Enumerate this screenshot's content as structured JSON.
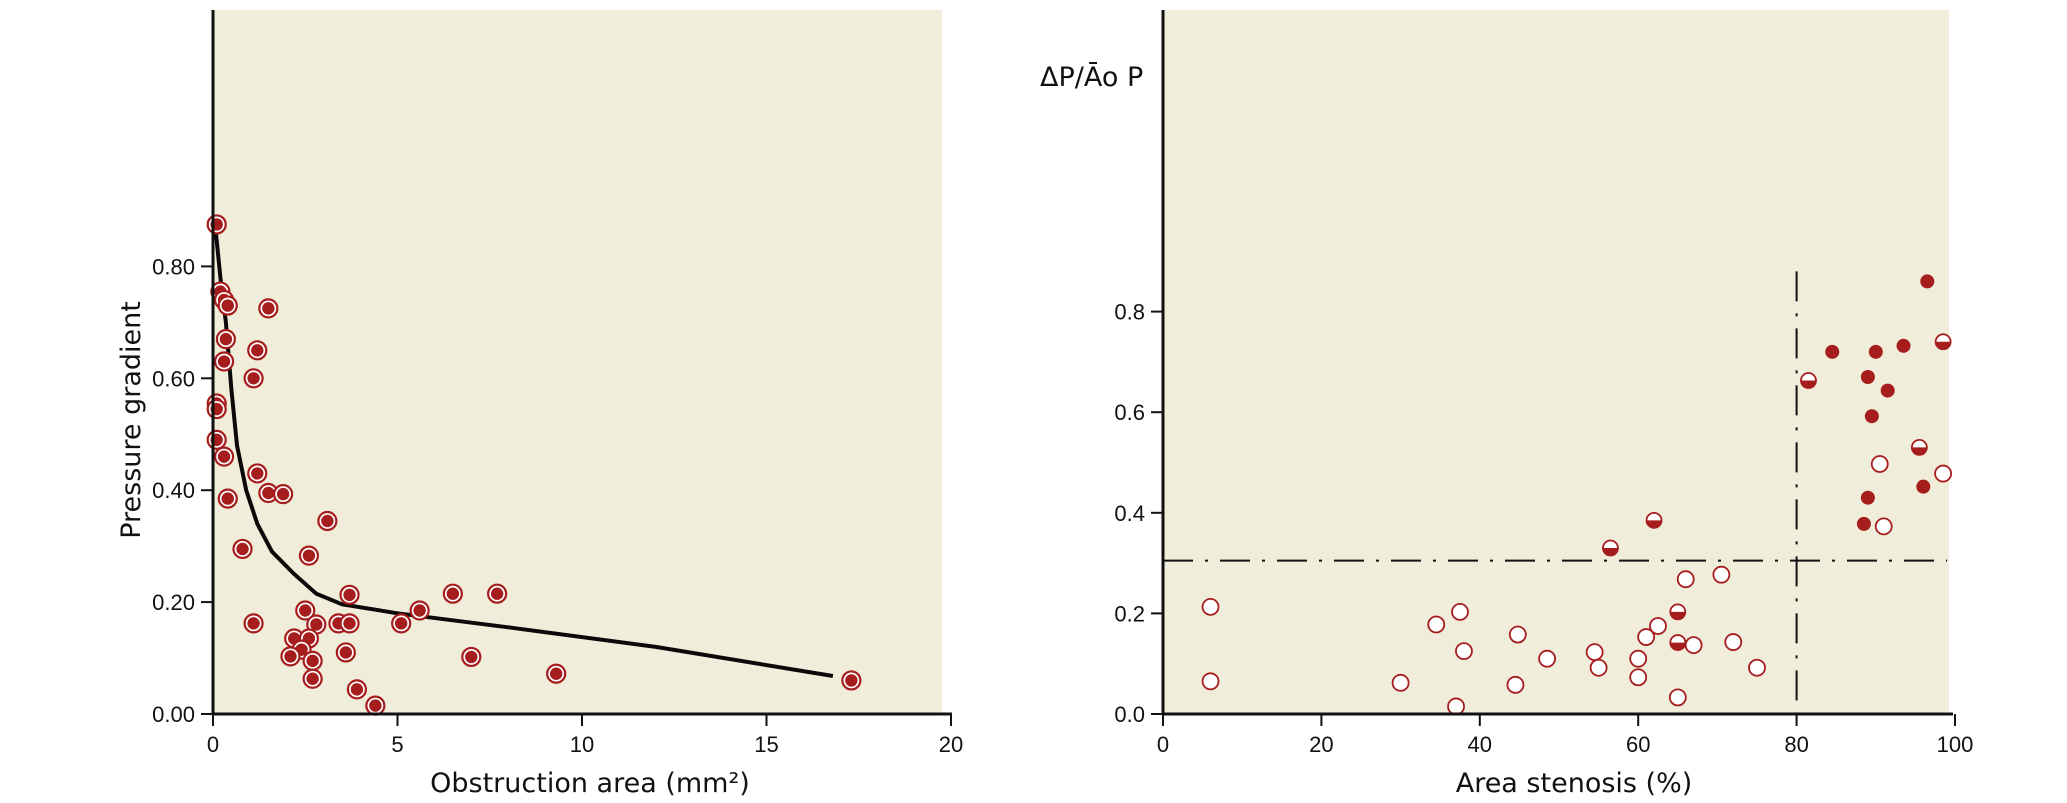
{
  "colors": {
    "background": "#f1eddb",
    "marker": "#a61d1d",
    "axis": "#111111"
  },
  "chart_data": [
    {
      "type": "scatter",
      "xlabel": "Obstruction area (mm²)",
      "ylabel": "Pressure gradient",
      "xlim": [
        0,
        20
      ],
      "ylim": [
        0,
        1.0
      ],
      "xticks": [
        0,
        5,
        10,
        15,
        20
      ],
      "yticks": [
        0.0,
        0.2,
        0.4,
        0.6,
        0.8
      ],
      "xtick_labels": [
        "0",
        "5",
        "10",
        "15",
        "20"
      ],
      "ytick_labels": [
        "0.00",
        "0.20",
        "0.40",
        "0.60",
        "0.80"
      ],
      "series": [
        {
          "marker": "filled-circle-with-ring",
          "points": [
            [
              0.1,
              0.875
            ],
            [
              0.2,
              0.755
            ],
            [
              0.3,
              0.74
            ],
            [
              0.4,
              0.73
            ],
            [
              1.5,
              0.725
            ],
            [
              0.35,
              0.67
            ],
            [
              1.2,
              0.65
            ],
            [
              0.3,
              0.63
            ],
            [
              1.1,
              0.6
            ],
            [
              0.1,
              0.555
            ],
            [
              0.1,
              0.545
            ],
            [
              0.1,
              0.49
            ],
            [
              0.3,
              0.46
            ],
            [
              1.2,
              0.43
            ],
            [
              1.5,
              0.395
            ],
            [
              1.9,
              0.393
            ],
            [
              0.4,
              0.385
            ],
            [
              3.1,
              0.345
            ],
            [
              0.8,
              0.295
            ],
            [
              2.6,
              0.283
            ],
            [
              3.7,
              0.213
            ],
            [
              6.5,
              0.215
            ],
            [
              7.7,
              0.215
            ],
            [
              2.5,
              0.185
            ],
            [
              5.6,
              0.185
            ],
            [
              1.1,
              0.162
            ],
            [
              2.8,
              0.16
            ],
            [
              3.4,
              0.162
            ],
            [
              3.7,
              0.162
            ],
            [
              5.1,
              0.162
            ],
            [
              2.2,
              0.135
            ],
            [
              2.6,
              0.135
            ],
            [
              2.4,
              0.115
            ],
            [
              3.6,
              0.11
            ],
            [
              2.1,
              0.103
            ],
            [
              2.7,
              0.095
            ],
            [
              7.0,
              0.102
            ],
            [
              9.3,
              0.072
            ],
            [
              2.7,
              0.063
            ],
            [
              3.9,
              0.044
            ],
            [
              4.4,
              0.015
            ],
            [
              17.3,
              0.06
            ]
          ]
        }
      ],
      "fit_curve": [
        [
          0.05,
          0.88
        ],
        [
          0.2,
          0.78
        ],
        [
          0.35,
          0.7
        ],
        [
          0.5,
          0.58
        ],
        [
          0.65,
          0.48
        ],
        [
          0.9,
          0.4
        ],
        [
          1.2,
          0.34
        ],
        [
          1.6,
          0.29
        ],
        [
          2.2,
          0.25
        ],
        [
          2.8,
          0.215
        ],
        [
          3.5,
          0.196
        ],
        [
          5.0,
          0.18
        ],
        [
          8.0,
          0.155
        ],
        [
          12.0,
          0.12
        ],
        [
          16.8,
          0.068
        ]
      ]
    },
    {
      "type": "scatter",
      "title": "ΔP/Āo P",
      "xlabel": "Area stenosis (%)",
      "ylabel": "",
      "xlim": [
        0,
        100
      ],
      "ylim": [
        0,
        1.0
      ],
      "xticks": [
        0,
        20,
        40,
        60,
        80,
        100
      ],
      "yticks": [
        0.0,
        0.2,
        0.4,
        0.6,
        0.8
      ],
      "xtick_labels": [
        "0",
        "20",
        "40",
        "60",
        "80",
        "100"
      ],
      "ytick_labels": [
        "0.0",
        "0.2",
        "0.4",
        "0.6",
        "0.8"
      ],
      "reference_lines": {
        "x": 80,
        "y": 0.305
      },
      "series": [
        {
          "marker": "open-circle",
          "points": [
            [
              6,
              0.213
            ],
            [
              6,
              0.065
            ],
            [
              30,
              0.062
            ],
            [
              34.5,
              0.178
            ],
            [
              37,
              0.015
            ],
            [
              37.5,
              0.203
            ],
            [
              38,
              0.125
            ],
            [
              44.5,
              0.058
            ],
            [
              44.8,
              0.158
            ],
            [
              48.5,
              0.11
            ],
            [
              54.5,
              0.123
            ],
            [
              55,
              0.092
            ],
            [
              60,
              0.11
            ],
            [
              60,
              0.073
            ],
            [
              61,
              0.153
            ],
            [
              62.5,
              0.175
            ],
            [
              65,
              0.033
            ],
            [
              66,
              0.268
            ],
            [
              67,
              0.137
            ],
            [
              70.5,
              0.277
            ],
            [
              72,
              0.143
            ],
            [
              75,
              0.092
            ],
            [
              90.5,
              0.497
            ],
            [
              91,
              0.373
            ],
            [
              98.5,
              0.478
            ]
          ]
        },
        {
          "marker": "half-filled-circle",
          "points": [
            [
              56.5,
              0.33
            ],
            [
              62,
              0.385
            ],
            [
              65,
              0.203
            ],
            [
              65,
              0.142
            ],
            [
              81.5,
              0.663
            ],
            [
              95.5,
              0.53
            ],
            [
              98.5,
              0.74
            ]
          ]
        },
        {
          "marker": "filled-circle",
          "points": [
            [
              84.5,
              0.72
            ],
            [
              89,
              0.67
            ],
            [
              89,
              0.43
            ],
            [
              88.5,
              0.378
            ],
            [
              89.5,
              0.592
            ],
            [
              90,
              0.72
            ],
            [
              91.5,
              0.643
            ],
            [
              93.5,
              0.732
            ],
            [
              96,
              0.452
            ],
            [
              96.5,
              0.86
            ]
          ]
        }
      ]
    }
  ]
}
